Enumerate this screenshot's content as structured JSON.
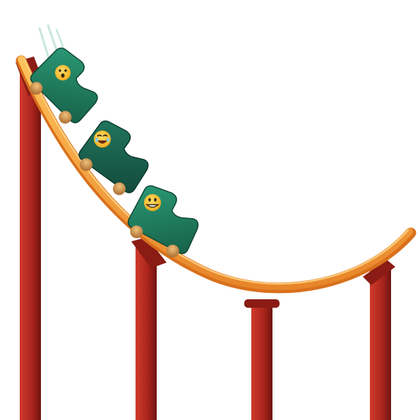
{
  "scene": {
    "subject": "roller-coaster",
    "cars": [
      {
        "face": "astonished-face-icon",
        "color": "#1f7a5e"
      },
      {
        "face": "laughing-face-icon",
        "color": "#1a5f4c"
      },
      {
        "face": "grinning-face-icon",
        "color": "#1f7a5e"
      }
    ],
    "colors": {
      "track": "#f5a33a",
      "track_edge": "#e07c1f",
      "support": "#b52a22",
      "support_dark": "#7a1712",
      "wheel": "#c98a4a",
      "face": "#f7c325"
    }
  }
}
